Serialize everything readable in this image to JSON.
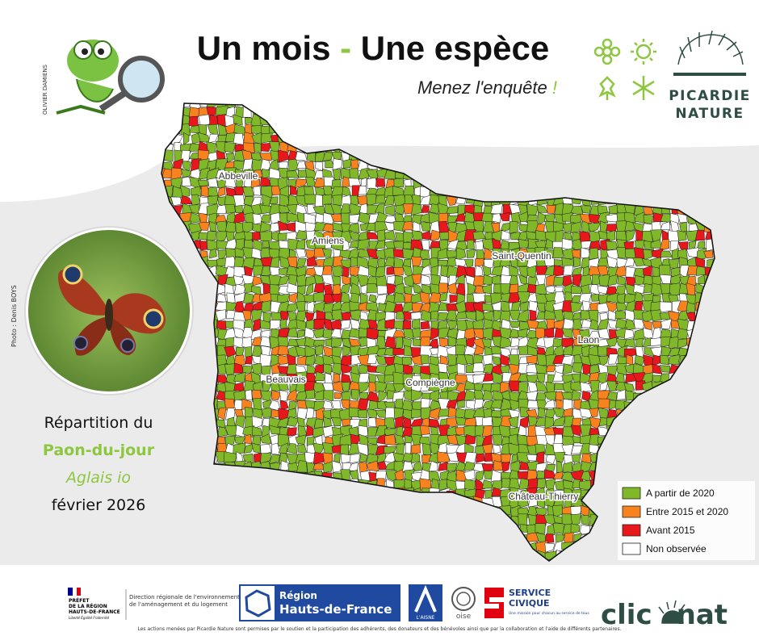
{
  "header": {
    "title_part1": "Un mois",
    "title_dash": "-",
    "title_part2": "Une espèce",
    "subtitle": "Menez l'enquête",
    "subtitle_mark": "!",
    "illustrator": "OLIVIER DAMIENS",
    "logo_line1": "PICARDIE",
    "logo_line2": "NATURE"
  },
  "photo_credit": "Photo : Denis BOYS",
  "species": {
    "line1": "Répartition du",
    "common_name": "Paon-du-jour",
    "latin_name": "Aglais io",
    "date": "février 2026"
  },
  "map": {
    "cities": [
      "Abbeville",
      "Amiens",
      "Saint-Quentin",
      "Laon",
      "Beauvais",
      "Compiègne",
      "Château-Thierry"
    ]
  },
  "legend": [
    {
      "label": "A partir de 2020",
      "color": "#80b82a"
    },
    {
      "label": "Entre 2015 et 2020",
      "color": "#f7821e"
    },
    {
      "label": "Avant 2015",
      "color": "#e8171c"
    },
    {
      "label": "Non observée",
      "color": "#ffffff"
    }
  ],
  "footer": {
    "prefet": [
      "PRÉFET",
      "DE LA RÉGION",
      "HAUTS-DE-FRANCE"
    ],
    "motto": "Liberté Égalité Fraternité",
    "dreal": [
      "Direction régionale de l'environnement,",
      "de l'aménagement et du logement"
    ],
    "region": [
      "Région",
      "Hauts-de-France"
    ],
    "aisne": "L'AISNE",
    "oise": "oise",
    "service_civique": [
      "SERVICE",
      "CIVIQUE"
    ],
    "service_civique_tagline": "Une mission pour chacun au service de tous",
    "cliconat": [
      "clic",
      "nat"
    ],
    "note": "Les actions menées par Picardie Nature sont permises par le soutien et la participation des adhérents, des donateurs et des bénévoles ainsi que par la collaboration et l'aide de différents partenaires."
  }
}
